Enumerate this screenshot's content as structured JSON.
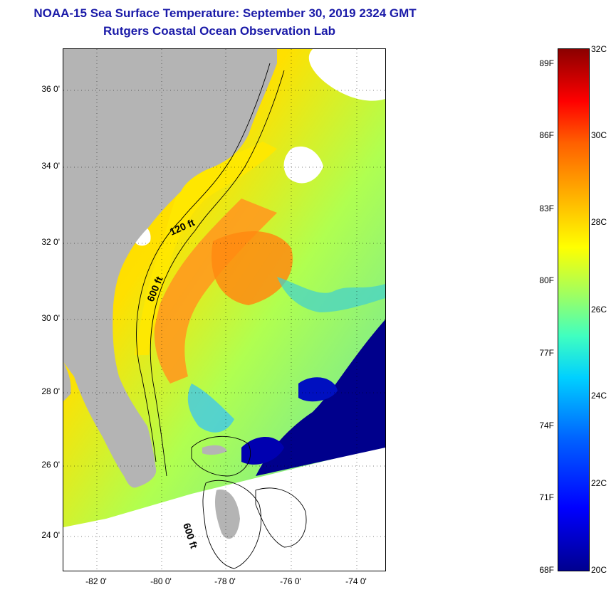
{
  "title": {
    "line1": "NOAA-15 Sea Surface Temperature:  September 30, 2019 2324 GMT",
    "line2": "Rutgers Coastal Ocean Observation Lab"
  },
  "map": {
    "lat_labels": [
      "36 0'",
      "34 0'",
      "32 0'",
      "30 0'",
      "28 0'",
      "26 0'",
      "24 0'"
    ],
    "lon_labels": [
      "-82 0'",
      "-80 0'",
      "-78 0'",
      "-76 0'",
      "-74 0'"
    ],
    "contour_labels": [
      "120 ft",
      "600 ft",
      "600 ft"
    ],
    "colors": {
      "land": "#b4b4b4",
      "no_data": "#ffffff",
      "cloud_cold": "#00008c",
      "shelf_warm": "#ffd800",
      "gulf_stream": "#ff8a1a"
    }
  },
  "colorbar": {
    "fahrenheit_labels": [
      "89F",
      "86F",
      "83F",
      "80F",
      "77F",
      "74F",
      "71F",
      "68F"
    ],
    "celsius_labels": [
      "32C",
      "30C",
      "28C",
      "26C",
      "24C",
      "22C",
      "20C"
    ],
    "range_c": [
      20,
      32
    ],
    "range_f": [
      68,
      89.6
    ]
  }
}
